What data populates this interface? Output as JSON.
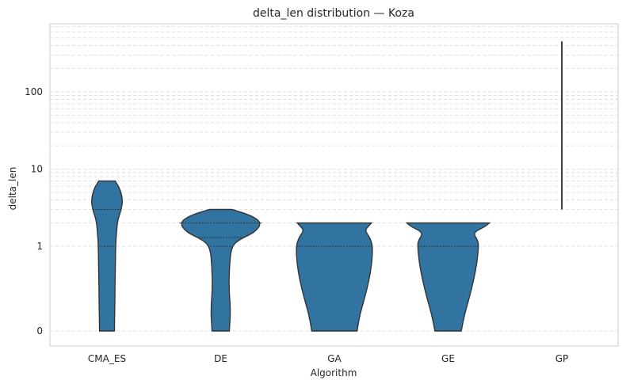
{
  "chart_data": {
    "type": "violin",
    "title": "delta_len distribution — Koza",
    "xlabel": "Algorithm",
    "ylabel": "delta_len",
    "yscale": "symlog",
    "yticks": [
      0,
      1,
      10,
      100
    ],
    "ytick_labels": [
      "0",
      "1",
      "10",
      "100"
    ],
    "ylim": [
      -0.1,
      700
    ],
    "grid": true,
    "color": "#3274a1",
    "categories": [
      "CMA_ES",
      "DE",
      "GA",
      "GE",
      "GP"
    ],
    "violins": [
      {
        "name": "CMA_ES",
        "min": 0,
        "max": 7,
        "quartiles": [
          0,
          1,
          3
        ],
        "profile": [
          [
            0,
            0.18
          ],
          [
            0.3,
            0.19
          ],
          [
            0.7,
            0.2
          ],
          [
            1.0,
            0.21
          ],
          [
            1.5,
            0.23
          ],
          [
            2.2,
            0.26
          ],
          [
            3.0,
            0.35
          ],
          [
            4.0,
            0.38
          ],
          [
            5.5,
            0.32
          ],
          [
            7.0,
            0.2
          ]
        ]
      },
      {
        "name": "DE",
        "min": 0,
        "max": 3,
        "quartiles": [
          1,
          1.3,
          2
        ],
        "profile": [
          [
            0,
            0.21
          ],
          [
            0.25,
            0.24
          ],
          [
            0.5,
            0.2
          ],
          [
            0.75,
            0.21
          ],
          [
            1.0,
            0.26
          ],
          [
            1.25,
            0.48
          ],
          [
            1.5,
            0.82
          ],
          [
            2.0,
            1.0
          ],
          [
            2.5,
            0.75
          ],
          [
            3.0,
            0.27
          ]
        ]
      },
      {
        "name": "GA",
        "min": 0,
        "max": 2,
        "quartiles": [
          0,
          1,
          2
        ],
        "profile": [
          [
            0,
            0.55
          ],
          [
            0.2,
            0.62
          ],
          [
            0.4,
            0.74
          ],
          [
            0.6,
            0.84
          ],
          [
            0.8,
            0.91
          ],
          [
            1.0,
            0.93
          ],
          [
            1.3,
            0.86
          ],
          [
            1.6,
            0.74
          ],
          [
            1.8,
            0.82
          ],
          [
            2.0,
            0.9
          ]
        ]
      },
      {
        "name": "GE",
        "min": 0,
        "max": 2,
        "quartiles": [
          1,
          1,
          2
        ],
        "profile": [
          [
            0,
            0.32
          ],
          [
            0.2,
            0.4
          ],
          [
            0.4,
            0.52
          ],
          [
            0.6,
            0.62
          ],
          [
            0.8,
            0.7
          ],
          [
            1.0,
            0.74
          ],
          [
            1.2,
            0.72
          ],
          [
            1.5,
            0.6
          ],
          [
            1.8,
            0.9
          ],
          [
            2.0,
            1.0
          ]
        ]
      },
      {
        "name": "GP",
        "min": 3,
        "max": 450,
        "quartiles": [],
        "profile": []
      }
    ]
  }
}
